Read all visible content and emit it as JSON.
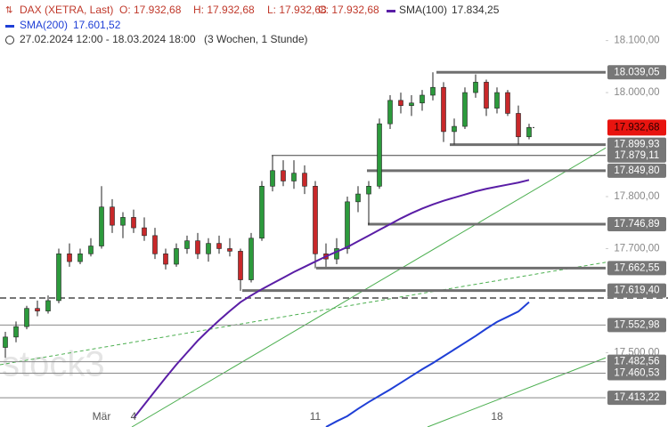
{
  "chart_data": {
    "type": "candlestick",
    "header": {
      "symbol": "DAX (XETRA, Last)",
      "ohlc": [
        "O: 17.932,68",
        "H: 17.932,68",
        "L: 17.932,68",
        "C: 17.932,68"
      ],
      "range": "27.02.2024 12:00 - 18.03.2024 18:00",
      "interval": "(3 Wochen, 1 Stunde)"
    },
    "watermark": "stock3",
    "categories": [
      null,
      null,
      null,
      null,
      null,
      null,
      null,
      null,
      null,
      "Mär",
      null,
      null,
      "4",
      null,
      null,
      null,
      null,
      null,
      null,
      null,
      null,
      null,
      null,
      null,
      null,
      null,
      null,
      null,
      null,
      "11",
      null,
      null,
      null,
      null,
      null,
      null,
      null,
      null,
      null,
      null,
      null,
      null,
      null,
      null,
      null,
      null,
      "18",
      null,
      null,
      null
    ],
    "ohlc": [
      [
        17510,
        17540,
        17490,
        17530
      ],
      [
        17530,
        17560,
        17520,
        17550
      ],
      [
        17550,
        17590,
        17545,
        17585
      ],
      [
        17585,
        17600,
        17570,
        17580
      ],
      [
        17580,
        17610,
        17575,
        17600
      ],
      [
        17600,
        17700,
        17595,
        17690
      ],
      [
        17690,
        17710,
        17665,
        17675
      ],
      [
        17675,
        17700,
        17670,
        17690
      ],
      [
        17690,
        17720,
        17685,
        17705
      ],
      [
        17705,
        17820,
        17700,
        17780
      ],
      [
        17780,
        17795,
        17730,
        17745
      ],
      [
        17745,
        17770,
        17720,
        17760
      ],
      [
        17760,
        17775,
        17730,
        17740
      ],
      [
        17740,
        17760,
        17715,
        17725
      ],
      [
        17725,
        17740,
        17680,
        17690
      ],
      [
        17690,
        17700,
        17660,
        17670
      ],
      [
        17670,
        17710,
        17665,
        17700
      ],
      [
        17700,
        17725,
        17690,
        17715
      ],
      [
        17715,
        17730,
        17680,
        17690
      ],
      [
        17690,
        17720,
        17675,
        17710
      ],
      [
        17710,
        17725,
        17690,
        17700
      ],
      [
        17700,
        17720,
        17685,
        17695
      ],
      [
        17695,
        17700,
        17619,
        17640
      ],
      [
        17640,
        17730,
        17635,
        17720
      ],
      [
        17720,
        17830,
        17715,
        17820
      ],
      [
        17820,
        17879,
        17810,
        17850
      ],
      [
        17850,
        17870,
        17820,
        17830
      ],
      [
        17830,
        17870,
        17815,
        17845
      ],
      [
        17845,
        17860,
        17805,
        17820
      ],
      [
        17820,
        17830,
        17662,
        17690
      ],
      [
        17690,
        17710,
        17665,
        17680
      ],
      [
        17680,
        17720,
        17670,
        17700
      ],
      [
        17700,
        17800,
        17690,
        17790
      ],
      [
        17790,
        17820,
        17770,
        17805
      ],
      [
        17805,
        17830,
        17746,
        17820
      ],
      [
        17820,
        17950,
        17815,
        17940
      ],
      [
        17940,
        17995,
        17930,
        17985
      ],
      [
        17985,
        18000,
        17960,
        17975
      ],
      [
        17975,
        17995,
        17955,
        17980
      ],
      [
        17980,
        18005,
        17965,
        17995
      ],
      [
        17995,
        18039,
        17985,
        18010
      ],
      [
        18010,
        18020,
        17905,
        17925
      ],
      [
        17925,
        17950,
        17900,
        17935
      ],
      [
        17935,
        18010,
        17930,
        18000
      ],
      [
        18000,
        18035,
        17990,
        18020
      ],
      [
        18020,
        18025,
        17955,
        17970
      ],
      [
        17970,
        18010,
        17960,
        18000
      ],
      [
        18000,
        18005,
        17955,
        17960
      ],
      [
        17960,
        17975,
        17900,
        17915
      ],
      [
        17915,
        17940,
        17910,
        17933
      ]
    ],
    "up_color": "#2c9a3c",
    "down_color": "#c8282a",
    "series": [
      {
        "name": "SMA(100)",
        "legend_value": "17.834,25",
        "color": "#5a1ea6",
        "values": [
          null,
          null,
          null,
          null,
          null,
          null,
          null,
          null,
          null,
          null,
          null,
          null,
          17374,
          17400,
          17426,
          17452,
          17477,
          17500,
          17523,
          17543,
          17562,
          17580,
          17597,
          17610,
          17622,
          17633,
          17644,
          17655,
          17665,
          17675,
          17685,
          17694,
          17703,
          17714,
          17725,
          17736,
          17747,
          17758,
          17768,
          17777,
          17785,
          17792,
          17798,
          17804,
          17810,
          17815,
          17819,
          17823,
          17827,
          17832
        ]
      },
      {
        "name": "SMA(200)",
        "legend_value": "17.601,52",
        "color": "#1f3fd6",
        "values": [
          null,
          null,
          null,
          null,
          null,
          null,
          null,
          null,
          null,
          null,
          null,
          null,
          null,
          null,
          null,
          null,
          null,
          null,
          null,
          null,
          null,
          null,
          null,
          null,
          null,
          null,
          null,
          null,
          null,
          null,
          17357,
          17368,
          17378,
          17392,
          17405,
          17417,
          17429,
          17442,
          17455,
          17468,
          17480,
          17493,
          17506,
          17519,
          17532,
          17546,
          17559,
          17569,
          17579,
          17597
        ]
      }
    ],
    "levels": [
      {
        "value": 18039.05,
        "label": "18.039,05"
      },
      {
        "value": 17899.93,
        "label": "17.899,93"
      },
      {
        "value": 17879.11,
        "label": "17.879,11"
      },
      {
        "value": 17849.8,
        "label": "17.849,80"
      },
      {
        "value": 17746.89,
        "label": "17.746,89"
      },
      {
        "value": 17662.55,
        "label": "17.662,55"
      },
      {
        "value": 17619.4,
        "label": "17.619,40"
      },
      {
        "value": 17552.98,
        "label": "17.552,98"
      },
      {
        "value": 17482.56,
        "label": "17.482,56"
      },
      {
        "value": 17460.53,
        "label": "17.460,53"
      },
      {
        "value": 17413.22,
        "label": "17.413,22"
      }
    ],
    "dashed_level": 17605,
    "current": {
      "value": 17932.68,
      "label": "17.932,68"
    },
    "ylim": [
      17357,
      18178
    ],
    "yticks": [
      {
        "value": 18100,
        "label": "18.100,00"
      },
      {
        "value": 18000,
        "label": "18.000,00"
      },
      {
        "value": 17800,
        "label": "17.800,00"
      },
      {
        "value": 17700,
        "label": "17.700,00"
      },
      {
        "value": 17500,
        "label": "17.500,00"
      }
    ]
  }
}
